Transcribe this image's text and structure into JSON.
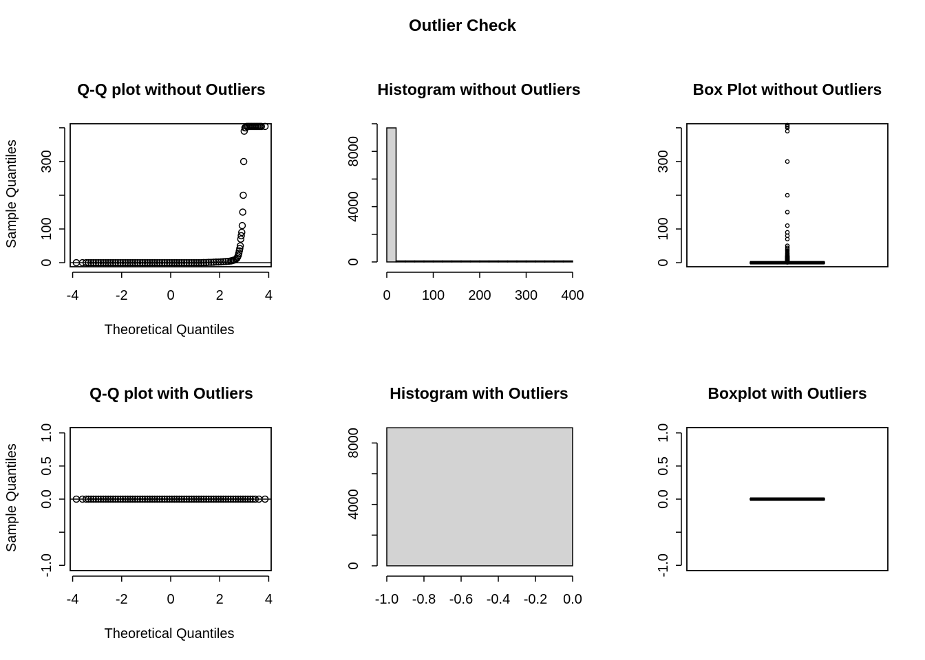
{
  "title": "Outlier Check",
  "colors": {
    "bar_fill": "#d3d3d3",
    "stroke": "#000000",
    "background": "#ffffff"
  },
  "chart_data": [
    {
      "id": "qq-without",
      "type": "scatter",
      "title": "Q-Q plot without Outliers",
      "xlabel": "Theoretical Quantiles",
      "ylabel": "Sample Quantiles",
      "xlim": [
        -4.1,
        4.1
      ],
      "ylim": [
        -12,
        412
      ],
      "xticks": [
        -4,
        -2,
        0,
        2,
        4
      ],
      "xtick_labels": [
        "-4",
        "-2",
        "0",
        "2",
        "4"
      ],
      "yticks": [
        0,
        100,
        200,
        300,
        400
      ],
      "ytick_labels": [
        "0",
        "100",
        "",
        "300",
        ""
      ],
      "hline": 0,
      "points": [
        [
          -3.85,
          0
        ],
        [
          -3.6,
          0
        ],
        [
          -3.45,
          0
        ],
        [
          -3.35,
          0
        ],
        [
          -3.25,
          0
        ],
        [
          -3.15,
          0
        ],
        [
          -3.05,
          0
        ],
        [
          -2.95,
          0
        ],
        [
          -2.85,
          0
        ],
        [
          -2.75,
          0
        ],
        [
          -2.65,
          0
        ],
        [
          -2.55,
          0
        ],
        [
          -2.45,
          0
        ],
        [
          -2.35,
          0
        ],
        [
          -2.25,
          0
        ],
        [
          -2.15,
          0
        ],
        [
          -2.05,
          0
        ],
        [
          -1.95,
          0
        ],
        [
          -1.85,
          0
        ],
        [
          -1.75,
          0
        ],
        [
          -1.65,
          0
        ],
        [
          -1.55,
          0
        ],
        [
          -1.45,
          0
        ],
        [
          -1.35,
          0
        ],
        [
          -1.25,
          0
        ],
        [
          -1.15,
          0
        ],
        [
          -1.05,
          0
        ],
        [
          -0.95,
          0
        ],
        [
          -0.85,
          0
        ],
        [
          -0.75,
          0
        ],
        [
          -0.65,
          0
        ],
        [
          -0.55,
          0
        ],
        [
          -0.45,
          0
        ],
        [
          -0.35,
          0
        ],
        [
          -0.25,
          0
        ],
        [
          -0.15,
          0
        ],
        [
          -0.05,
          0
        ],
        [
          0.05,
          0
        ],
        [
          0.15,
          0
        ],
        [
          0.25,
          0
        ],
        [
          0.35,
          0
        ],
        [
          0.45,
          0
        ],
        [
          0.55,
          0
        ],
        [
          0.65,
          0
        ],
        [
          0.75,
          0
        ],
        [
          0.85,
          0
        ],
        [
          0.95,
          0
        ],
        [
          1.05,
          0
        ],
        [
          1.15,
          0
        ],
        [
          1.25,
          0
        ],
        [
          1.35,
          0.5
        ],
        [
          1.45,
          0.5
        ],
        [
          1.55,
          1
        ],
        [
          1.65,
          1
        ],
        [
          1.75,
          1.5
        ],
        [
          1.85,
          2
        ],
        [
          1.95,
          2
        ],
        [
          2.05,
          2.5
        ],
        [
          2.15,
          3
        ],
        [
          2.25,
          3.5
        ],
        [
          2.35,
          4
        ],
        [
          2.45,
          5
        ],
        [
          2.5,
          6
        ],
        [
          2.55,
          7
        ],
        [
          2.6,
          8
        ],
        [
          2.65,
          10
        ],
        [
          2.7,
          13
        ],
        [
          2.73,
          17
        ],
        [
          2.76,
          22
        ],
        [
          2.78,
          28
        ],
        [
          2.8,
          35
        ],
        [
          2.82,
          42
        ],
        [
          2.84,
          50
        ],
        [
          2.86,
          70
        ],
        [
          2.88,
          80
        ],
        [
          2.9,
          90
        ],
        [
          2.92,
          110
        ],
        [
          2.94,
          150
        ],
        [
          2.96,
          200
        ],
        [
          2.98,
          300
        ],
        [
          3.0,
          390
        ],
        [
          3.03,
          400
        ],
        [
          3.06,
          400
        ],
        [
          3.1,
          404
        ],
        [
          3.15,
          404
        ],
        [
          3.2,
          404
        ],
        [
          3.25,
          404
        ],
        [
          3.3,
          404
        ],
        [
          3.35,
          404
        ],
        [
          3.4,
          404
        ],
        [
          3.45,
          404
        ],
        [
          3.5,
          404
        ],
        [
          3.55,
          404
        ],
        [
          3.6,
          404
        ],
        [
          3.65,
          404
        ],
        [
          3.7,
          404
        ],
        [
          3.85,
          404
        ]
      ]
    },
    {
      "id": "hist-without",
      "type": "bar",
      "title": "Histogram without Outliers",
      "xlabel": "",
      "ylabel": "",
      "xlim": [
        0,
        400
      ],
      "ylim": [
        0,
        10000
      ],
      "xticks": [
        0,
        100,
        200,
        300,
        400
      ],
      "xtick_labels": [
        "0",
        "100",
        "200",
        "300",
        "400"
      ],
      "yticks": [
        0,
        2000,
        4000,
        6000,
        8000,
        10000
      ],
      "ytick_labels": [
        "0",
        "",
        "4000",
        "",
        "8000",
        ""
      ],
      "bins": [
        {
          "x0": 0,
          "x1": 20,
          "count": 9700
        },
        {
          "x0": 20,
          "x1": 40,
          "count": 40
        },
        {
          "x0": 40,
          "x1": 60,
          "count": 10
        },
        {
          "x0": 60,
          "x1": 80,
          "count": 25
        },
        {
          "x0": 80,
          "x1": 100,
          "count": 5
        },
        {
          "x0": 100,
          "x1": 120,
          "count": 5
        },
        {
          "x0": 120,
          "x1": 140,
          "count": 0
        },
        {
          "x0": 140,
          "x1": 160,
          "count": 5
        },
        {
          "x0": 160,
          "x1": 180,
          "count": 0
        },
        {
          "x0": 180,
          "x1": 200,
          "count": 5
        },
        {
          "x0": 200,
          "x1": 220,
          "count": 0
        },
        {
          "x0": 220,
          "x1": 240,
          "count": 0
        },
        {
          "x0": 240,
          "x1": 260,
          "count": 0
        },
        {
          "x0": 260,
          "x1": 280,
          "count": 0
        },
        {
          "x0": 280,
          "x1": 300,
          "count": 0
        },
        {
          "x0": 300,
          "x1": 320,
          "count": 5
        },
        {
          "x0": 320,
          "x1": 340,
          "count": 0
        },
        {
          "x0": 340,
          "x1": 360,
          "count": 0
        },
        {
          "x0": 360,
          "x1": 380,
          "count": 0
        },
        {
          "x0": 380,
          "x1": 400,
          "count": 30
        }
      ]
    },
    {
      "id": "box-without",
      "type": "box",
      "title": "Box Plot without Outliers",
      "xlabel": "",
      "ylabel": "",
      "ylim": [
        -12,
        412
      ],
      "yticks": [
        0,
        100,
        200,
        300,
        400
      ],
      "ytick_labels": [
        "0",
        "100",
        "",
        "300",
        ""
      ],
      "box": {
        "min": 0,
        "q1": 0,
        "median": 0,
        "q3": 0,
        "max": 0
      },
      "outliers": [
        1,
        2,
        3,
        4,
        5,
        6,
        7,
        8,
        9,
        10,
        11,
        12,
        13,
        14,
        15,
        16,
        17,
        18,
        19,
        20,
        22,
        25,
        28,
        32,
        36,
        40,
        44,
        50,
        70,
        80,
        90,
        110,
        150,
        200,
        300,
        390,
        400,
        404,
        408
      ]
    },
    {
      "id": "qq-with",
      "type": "scatter",
      "title": "Q-Q plot with Outliers",
      "xlabel": "Theoretical Quantiles",
      "ylabel": "Sample Quantiles",
      "xlim": [
        -4.1,
        4.1
      ],
      "ylim": [
        -1.08,
        1.08
      ],
      "xticks": [
        -4,
        -2,
        0,
        2,
        4
      ],
      "xtick_labels": [
        "-4",
        "-2",
        "0",
        "2",
        "4"
      ],
      "yticks": [
        -1,
        -0.5,
        0,
        0.5,
        1
      ],
      "ytick_labels": [
        "-1.0",
        "",
        "0.0",
        "0.5",
        "1.0"
      ],
      "hline": 0,
      "points": [
        [
          -3.85,
          0
        ],
        [
          -3.6,
          0
        ],
        [
          -3.45,
          0
        ],
        [
          -3.35,
          0
        ],
        [
          -3.25,
          0
        ],
        [
          -3.15,
          0
        ],
        [
          -3.05,
          0
        ],
        [
          -2.95,
          0
        ],
        [
          -2.85,
          0
        ],
        [
          -2.75,
          0
        ],
        [
          -2.65,
          0
        ],
        [
          -2.55,
          0
        ],
        [
          -2.45,
          0
        ],
        [
          -2.35,
          0
        ],
        [
          -2.25,
          0
        ],
        [
          -2.15,
          0
        ],
        [
          -2.05,
          0
        ],
        [
          -1.95,
          0
        ],
        [
          -1.85,
          0
        ],
        [
          -1.75,
          0
        ],
        [
          -1.65,
          0
        ],
        [
          -1.55,
          0
        ],
        [
          -1.45,
          0
        ],
        [
          -1.35,
          0
        ],
        [
          -1.25,
          0
        ],
        [
          -1.15,
          0
        ],
        [
          -1.05,
          0
        ],
        [
          -0.95,
          0
        ],
        [
          -0.85,
          0
        ],
        [
          -0.75,
          0
        ],
        [
          -0.65,
          0
        ],
        [
          -0.55,
          0
        ],
        [
          -0.45,
          0
        ],
        [
          -0.35,
          0
        ],
        [
          -0.25,
          0
        ],
        [
          -0.15,
          0
        ],
        [
          -0.05,
          0
        ],
        [
          0.05,
          0
        ],
        [
          0.15,
          0
        ],
        [
          0.25,
          0
        ],
        [
          0.35,
          0
        ],
        [
          0.45,
          0
        ],
        [
          0.55,
          0
        ],
        [
          0.65,
          0
        ],
        [
          0.75,
          0
        ],
        [
          0.85,
          0
        ],
        [
          0.95,
          0
        ],
        [
          1.05,
          0
        ],
        [
          1.15,
          0
        ],
        [
          1.25,
          0
        ],
        [
          1.35,
          0
        ],
        [
          1.45,
          0
        ],
        [
          1.55,
          0
        ],
        [
          1.65,
          0
        ],
        [
          1.75,
          0
        ],
        [
          1.85,
          0
        ],
        [
          1.95,
          0
        ],
        [
          2.05,
          0
        ],
        [
          2.15,
          0
        ],
        [
          2.25,
          0
        ],
        [
          2.35,
          0
        ],
        [
          2.45,
          0
        ],
        [
          2.55,
          0
        ],
        [
          2.65,
          0
        ],
        [
          2.75,
          0
        ],
        [
          2.85,
          0
        ],
        [
          2.95,
          0
        ],
        [
          3.05,
          0
        ],
        [
          3.15,
          0
        ],
        [
          3.25,
          0
        ],
        [
          3.35,
          0
        ],
        [
          3.45,
          0
        ],
        [
          3.6,
          0
        ],
        [
          3.85,
          0
        ]
      ]
    },
    {
      "id": "hist-with",
      "type": "bar",
      "title": "Histogram with Outliers",
      "xlabel": "",
      "ylabel": "",
      "xlim": [
        -1,
        0
      ],
      "ylim": [
        0,
        9000
      ],
      "xticks": [
        -1,
        -0.8,
        -0.6,
        -0.4,
        -0.2,
        0
      ],
      "xtick_labels": [
        "-1.0",
        "-0.8",
        "-0.6",
        "-0.4",
        "-0.2",
        "0.0"
      ],
      "yticks": [
        0,
        2000,
        4000,
        6000,
        8000
      ],
      "ytick_labels": [
        "0",
        "",
        "4000",
        "",
        "8000"
      ],
      "bins": [
        {
          "x0": -1,
          "x1": 0,
          "count": 8990
        }
      ]
    },
    {
      "id": "box-with",
      "type": "box",
      "title": "Boxplot with Outliers",
      "xlabel": "",
      "ylabel": "",
      "ylim": [
        -1.08,
        1.08
      ],
      "yticks": [
        -1,
        -0.5,
        0,
        0.5,
        1
      ],
      "ytick_labels": [
        "-1.0",
        "",
        "0.0",
        "0.5",
        "1.0"
      ],
      "box": {
        "min": 0,
        "q1": 0,
        "median": 0,
        "q3": 0,
        "max": 0
      },
      "outliers": []
    }
  ]
}
